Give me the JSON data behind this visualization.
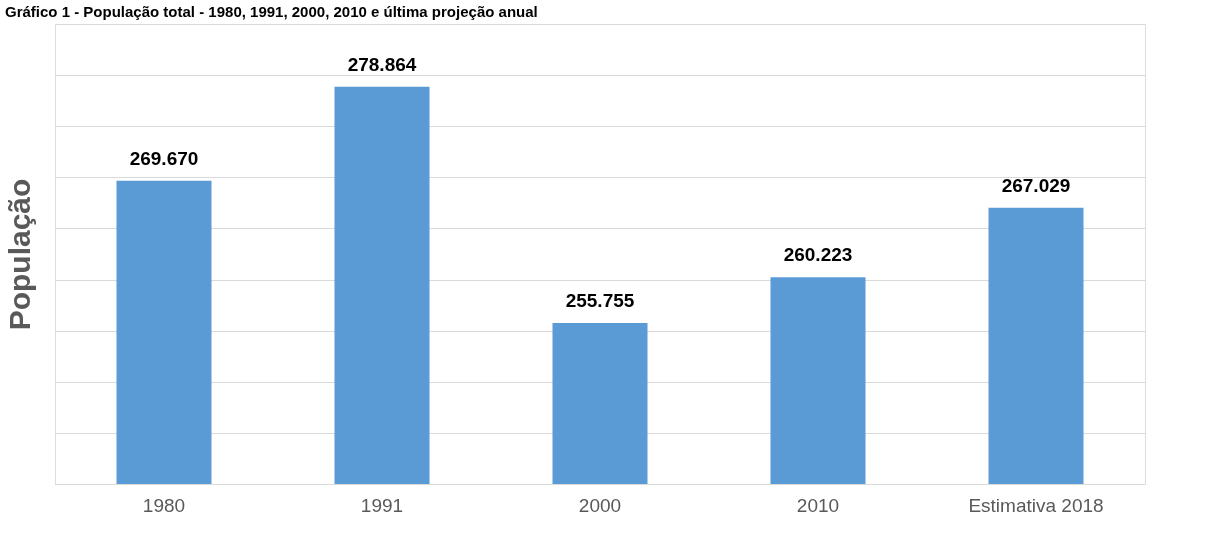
{
  "chart_data": {
    "type": "bar",
    "title": "Gráfico 1 - População total - 1980, 1991, 2000, 2010 e última projeção anual",
    "ylabel": "População",
    "categories": [
      "1980",
      "1991",
      "2000",
      "2010",
      "Estimativa 2018"
    ],
    "values": [
      269670,
      278864,
      255755,
      260223,
      267029
    ],
    "value_labels": [
      "269.670",
      "278.864",
      "255.755",
      "260.223",
      "267.029"
    ],
    "color": "#5b9bd5",
    "ylim": [
      240000,
      285000
    ],
    "yticks": [
      {
        "value": 240000,
        "label": null
      },
      {
        "value": 245000,
        "label": null
      },
      {
        "value": 250000,
        "label": null
      },
      {
        "value": 255000,
        "label": null
      },
      {
        "value": 260000,
        "label": null
      },
      {
        "value": 265000,
        "label": null
      },
      {
        "value": 270000,
        "label": null
      },
      {
        "value": 275000,
        "label": null
      },
      {
        "value": 280000,
        "label": null
      },
      {
        "value": 285000,
        "label": null
      }
    ],
    "grid": "y",
    "tick_labels": "x"
  }
}
